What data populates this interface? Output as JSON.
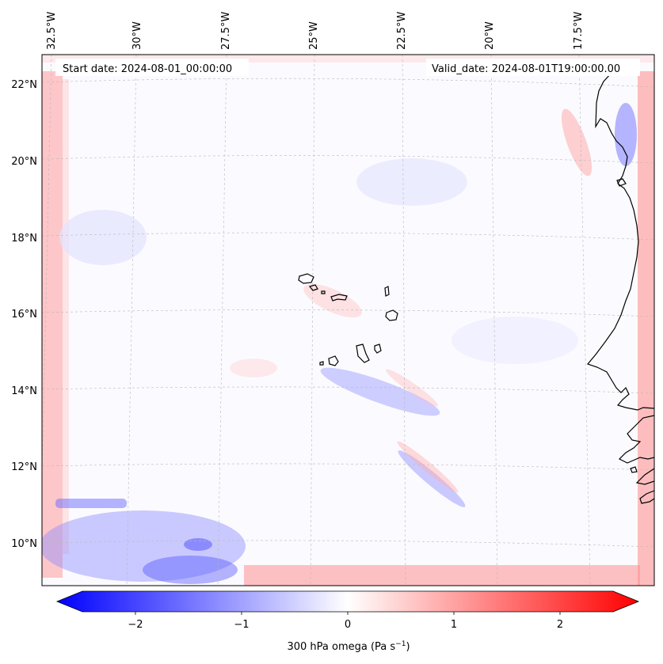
{
  "map": {
    "annotations": {
      "start_date": "Start date: 2024-08-01_00:00:00",
      "valid_date": "Valid_date: 2024-08-01T19:00:00.00"
    },
    "lon_labels": [
      "32.5°W",
      "30°W",
      "27.5°W",
      "25°W",
      "22.5°W",
      "20°W",
      "17.5°W"
    ],
    "lat_labels": [
      "22°N",
      "20°N",
      "18°N",
      "16°N",
      "14°N",
      "12°N",
      "10°N"
    ],
    "field_name": "300 hPa omega",
    "colormap": {
      "negative": "#0000ff",
      "zero": "#ffffff",
      "positive": "#ff0000"
    }
  },
  "colorbar": {
    "ticks": [
      "−2",
      "−1",
      "0",
      "1",
      "2"
    ],
    "range": [
      -2.6,
      2.6
    ],
    "label_main": "300 hPa omega (Pa s",
    "label_exp": "−1",
    "label_close": ")"
  }
}
